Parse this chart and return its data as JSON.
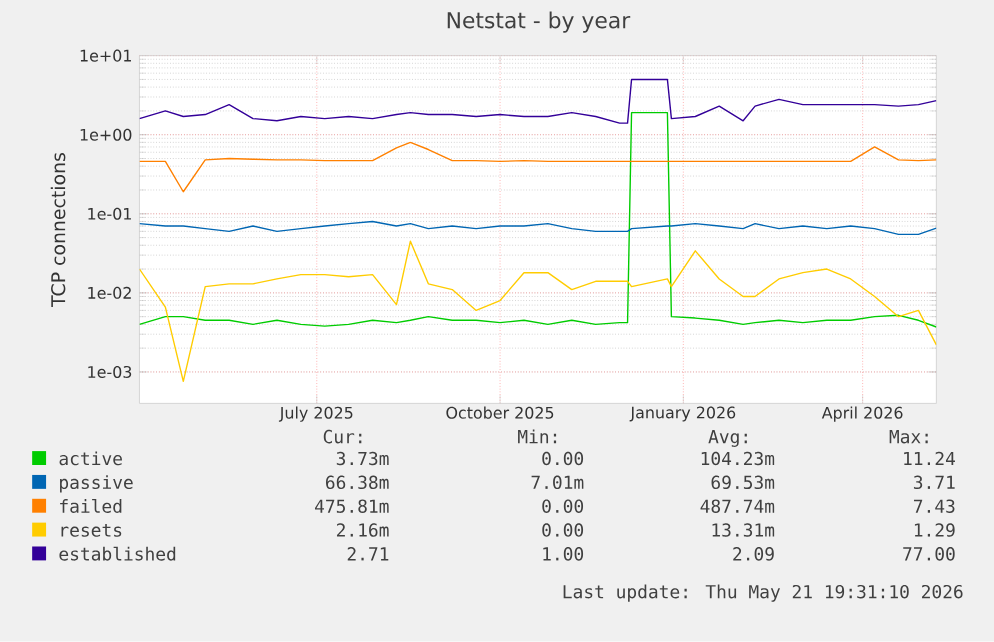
{
  "chart_data": {
    "type": "line",
    "title": "Netstat - by year",
    "ylabel": "TCP connections",
    "x": [
      "2025-04-03",
      "2025-04-16",
      "2025-04-25",
      "2025-05-06",
      "2025-05-18",
      "2025-05-30",
      "2025-06-11",
      "2025-06-23",
      "2025-07-05",
      "2025-07-17",
      "2025-07-29",
      "2025-08-10",
      "2025-08-17",
      "2025-08-26",
      "2025-09-07",
      "2025-09-19",
      "2025-10-01",
      "2025-10-13",
      "2025-10-25",
      "2025-11-06",
      "2025-11-18",
      "2025-11-30",
      "2025-12-04",
      "2025-12-06",
      "2025-12-24",
      "2025-12-26",
      "2026-01-07",
      "2026-01-19",
      "2026-01-31",
      "2026-02-06",
      "2026-02-18",
      "2026-03-02",
      "2026-03-14",
      "2026-03-26",
      "2026-04-07",
      "2026-04-19",
      "2026-04-29",
      "2026-05-08"
    ],
    "series": [
      {
        "name": "active",
        "color": "#00cc00",
        "values": [
          0.004,
          0.005,
          0.005,
          0.0045,
          0.0045,
          0.004,
          0.0045,
          0.004,
          0.0038,
          0.004,
          0.0045,
          0.0042,
          0.0045,
          0.005,
          0.0045,
          0.0045,
          0.0042,
          0.0045,
          0.004,
          0.0045,
          0.004,
          0.0042,
          0.0042,
          1.9,
          1.9,
          0.005,
          0.0048,
          0.0045,
          0.004,
          0.0042,
          0.0045,
          0.0042,
          0.0045,
          0.0045,
          0.005,
          0.0052,
          0.0045,
          0.0037
        ]
      },
      {
        "name": "passive",
        "color": "#0066b3",
        "values": [
          0.075,
          0.07,
          0.07,
          0.065,
          0.06,
          0.07,
          0.06,
          0.065,
          0.07,
          0.075,
          0.08,
          0.07,
          0.075,
          0.065,
          0.07,
          0.065,
          0.07,
          0.07,
          0.075,
          0.065,
          0.06,
          0.06,
          0.06,
          0.065,
          0.07,
          0.07,
          0.075,
          0.07,
          0.065,
          0.075,
          0.065,
          0.07,
          0.065,
          0.07,
          0.065,
          0.055,
          0.055,
          0.066
        ]
      },
      {
        "name": "failed",
        "color": "#ff8000",
        "values": [
          0.46,
          0.46,
          0.19,
          0.48,
          0.5,
          0.49,
          0.48,
          0.48,
          0.47,
          0.47,
          0.47,
          0.68,
          0.8,
          0.65,
          0.47,
          0.47,
          0.46,
          0.47,
          0.46,
          0.46,
          0.46,
          0.46,
          0.46,
          0.46,
          0.46,
          0.46,
          0.46,
          0.46,
          0.46,
          0.46,
          0.46,
          0.46,
          0.46,
          0.46,
          0.7,
          0.48,
          0.47,
          0.48
        ]
      },
      {
        "name": "resets",
        "color": "#ffcc00",
        "values": [
          0.02,
          0.0066,
          0.00076,
          0.012,
          0.013,
          0.013,
          0.015,
          0.017,
          0.017,
          0.016,
          0.017,
          0.0071,
          0.045,
          0.013,
          0.011,
          0.006,
          0.008,
          0.018,
          0.018,
          0.011,
          0.014,
          0.014,
          0.014,
          0.012,
          0.015,
          0.012,
          0.034,
          0.015,
          0.009,
          0.009,
          0.015,
          0.018,
          0.02,
          0.015,
          0.009,
          0.005,
          0.006,
          0.0022
        ]
      },
      {
        "name": "established",
        "color": "#330099",
        "values": [
          1.6,
          2.0,
          1.7,
          1.8,
          2.4,
          1.6,
          1.5,
          1.7,
          1.6,
          1.7,
          1.6,
          1.8,
          1.9,
          1.8,
          1.8,
          1.7,
          1.8,
          1.7,
          1.7,
          1.9,
          1.7,
          1.4,
          1.4,
          5.0,
          5.0,
          1.6,
          1.7,
          2.3,
          1.5,
          2.3,
          2.8,
          2.4,
          2.4,
          2.4,
          2.4,
          2.3,
          2.4,
          2.7
        ]
      }
    ],
    "log": "y",
    "grid": true,
    "legend": "bottom",
    "xlim": [
      "2025-04-03",
      "2026-05-08"
    ],
    "xticks": [
      {
        "value": "2025-07-01",
        "label": "July 2025"
      },
      {
        "value": "2025-10-01",
        "label": "October 2025"
      },
      {
        "value": "2026-01-01",
        "label": "January 2026"
      },
      {
        "value": "2026-04-01",
        "label": "April 2026"
      }
    ],
    "ylim": [
      0.0004,
      10
    ],
    "yticks": [
      {
        "value": 0.001,
        "label": "1e-03"
      },
      {
        "value": 0.01,
        "label": "1e-02"
      },
      {
        "value": 0.1,
        "label": "1e-01"
      },
      {
        "value": 1,
        "label": "1e+00"
      },
      {
        "value": 10,
        "label": "1e+01"
      }
    ],
    "annotations": [
      "Cur:",
      "Min:",
      "Avg:",
      "Max:",
      "3.73m",
      "0.00",
      "104.23m",
      "11.24",
      "66.38m",
      "7.01m",
      "69.53m",
      "3.71",
      "475.81m",
      "0.00",
      "487.74m",
      "7.43",
      "2.16m",
      "0.00",
      "13.31m",
      "1.29",
      "2.71",
      "1.00",
      "2.09",
      "77.00",
      "Last update: Thu May 21 19:31:10 2026"
    ]
  }
}
